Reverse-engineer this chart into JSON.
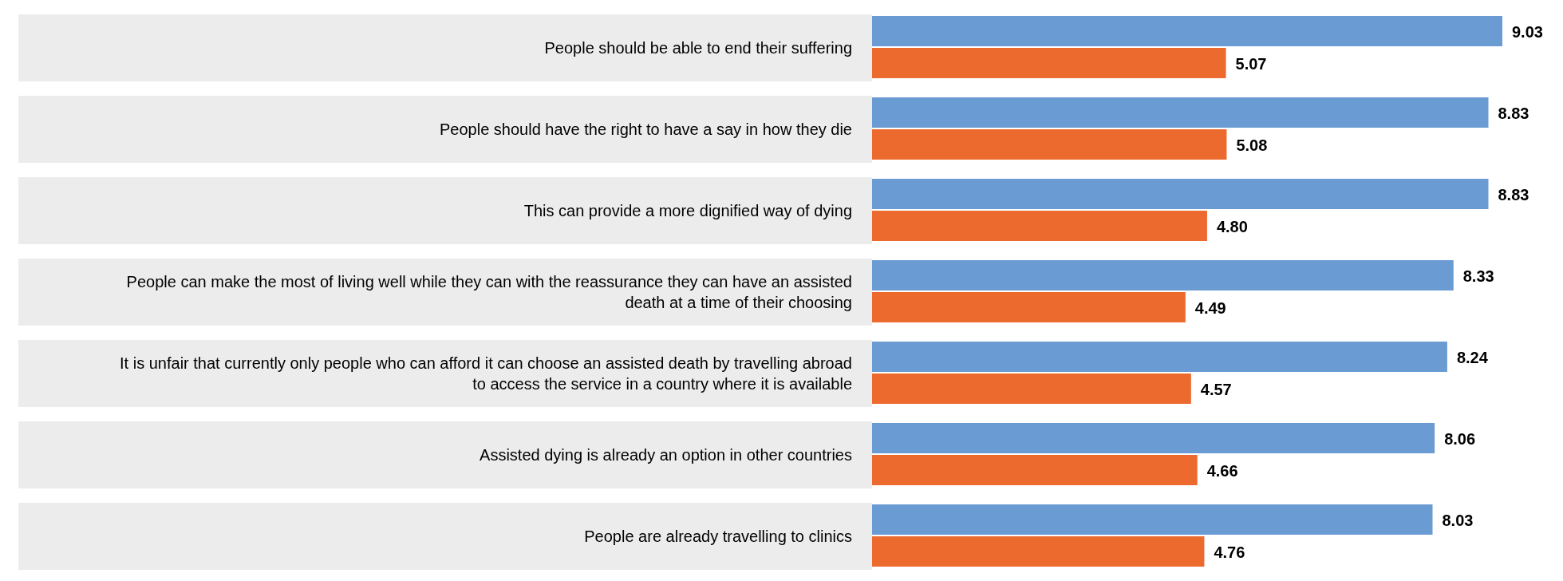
{
  "chart_data": {
    "type": "bar",
    "orientation": "horizontal",
    "categories": [
      "People should be able to end their suffering",
      "People should have the right to have a say in how they die",
      "This can provide a more dignified way of dying",
      "People can make the most of living well while they can with the reassurance they can have an assisted death at a time of their choosing",
      "It is unfair that currently only people who can afford it can choose an assisted death by travelling abroad to access the service in a country where it is available",
      "Assisted dying is already an option in other countries",
      "People are already travelling to clinics"
    ],
    "series": [
      {
        "color": "#6b9bd3",
        "values": [
          9.03,
          8.83,
          8.83,
          8.33,
          8.24,
          8.06,
          8.03
        ],
        "value_labels": [
          "9.03",
          "8.83",
          "8.83",
          "8.33",
          "8.24",
          "8.06",
          "8.03"
        ]
      },
      {
        "color": "#ed6a2e",
        "values": [
          5.07,
          5.08,
          4.8,
          4.49,
          4.57,
          4.66,
          4.76
        ],
        "value_labels": [
          "5.07",
          "5.08",
          "4.80",
          "4.49",
          "4.57",
          "4.66",
          "4.76"
        ]
      }
    ]
  }
}
